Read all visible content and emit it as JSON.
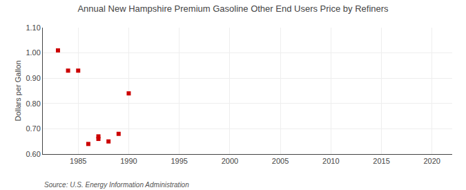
{
  "chart_data": {
    "type": "scatter",
    "title": "Annual New Hampshire Premium Gasoline Other End Users Price by Refiners",
    "ylabel": "Dollars per Gallon",
    "annotation": "Source: U.S. Energy Information Administration",
    "x": [
      1983,
      1984,
      1985,
      1986,
      1987,
      1987,
      1988,
      1989,
      1990
    ],
    "values": [
      1.01,
      0.93,
      0.93,
      0.64,
      0.67,
      0.66,
      0.65,
      0.68,
      0.84
    ],
    "color": "#cc0000",
    "marker": "square",
    "xlim": [
      1981.5,
      2022
    ],
    "xticks": [
      1985,
      1990,
      1995,
      2000,
      2005,
      2010,
      2015,
      2020
    ],
    "ylim": [
      0.6,
      1.1
    ],
    "yticks": [
      {
        "value": 0.6,
        "label": "0.60"
      },
      {
        "value": 0.7,
        "label": "0.70"
      },
      {
        "value": 0.8,
        "label": "0.80"
      },
      {
        "value": 0.9,
        "label": "0.90"
      },
      {
        "value": 1.0,
        "label": "1.00"
      },
      {
        "value": 1.1,
        "label": "1.10"
      }
    ],
    "grid": true
  }
}
